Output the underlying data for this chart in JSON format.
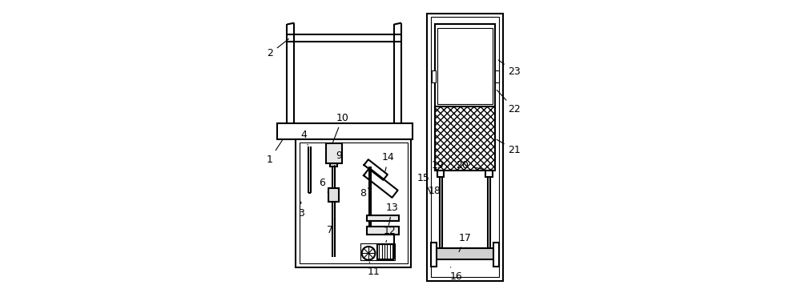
{
  "bg_color": "#ffffff",
  "line_color": "#000000",
  "line_width": 1.5,
  "thin_line": 0.8
}
